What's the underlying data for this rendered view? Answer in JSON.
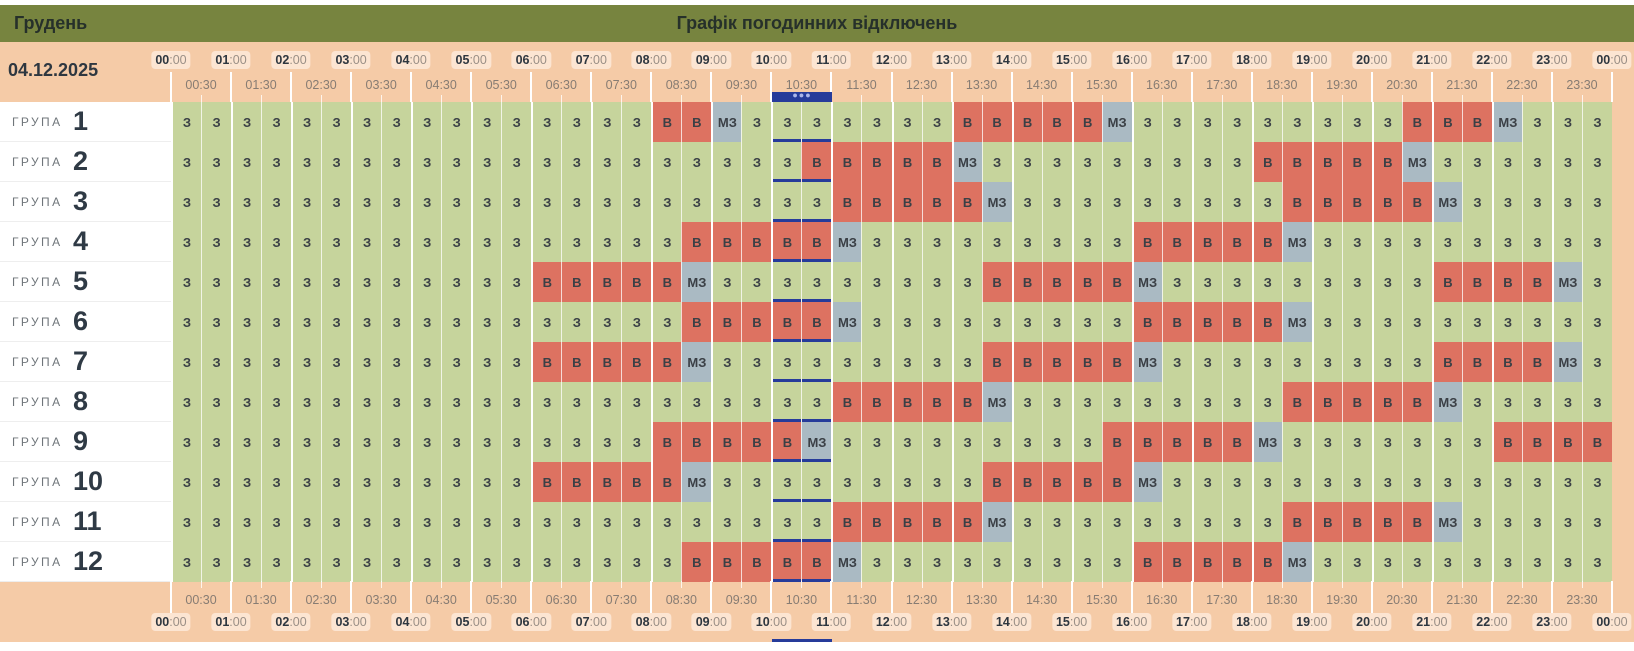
{
  "header": {
    "month": "Грудень",
    "title": "Графік погодинних відключень"
  },
  "date": "04.12.2025",
  "time_axis": {
    "hours": [
      "00",
      "01",
      "02",
      "03",
      "04",
      "05",
      "06",
      "07",
      "08",
      "09",
      "10",
      "11",
      "12",
      "13",
      "14",
      "15",
      "16",
      "17",
      "18",
      "19",
      "20",
      "21",
      "22",
      "23",
      "00"
    ],
    "hour_suffix": ":00",
    "half_hours": [
      "00:30",
      "01:30",
      "02:30",
      "03:30",
      "04:30",
      "05:30",
      "06:30",
      "07:30",
      "08:30",
      "09:30",
      "10:30",
      "11:30",
      "12:30",
      "13:30",
      "14:30",
      "15:30",
      "16:30",
      "17:30",
      "18:30",
      "19:30",
      "20:30",
      "21:30",
      "22:30",
      "23:30"
    ],
    "current_slot_hour": 10
  },
  "state_labels": {
    "z": "З",
    "v": "В",
    "m": "МЗ"
  },
  "colors": {
    "on": "#c6d49c",
    "off": "#dd7261",
    "maybe": "#aabac3",
    "header": "#77843f",
    "current": "#263b9a"
  },
  "group_word": "ГРУПА",
  "groups": [
    {
      "number": "1",
      "cells": "zzzzzzzzzzzzzzzzvvmzzzzzzzvvvvvmzzzzzzzzzvvvmzzz"
    },
    {
      "number": "2",
      "cells": "zzzzzzzzzzzzzzzzzzzzzvvvvvmzzzzzzzzzvvvvvmzzzzzz"
    },
    {
      "number": "3",
      "cells": "zzzzzzzzzzzzzzzzzzzzzzvvvvvmzzzzzzzzzvvvvvmzzzzz"
    },
    {
      "number": "4",
      "cells": "zzzzzzzzzzzzzzzzzvvvvvmzzzzzzzzzvvvvvmzzzzzzzzzz"
    },
    {
      "number": "5",
      "cells": "zzzzzzzzzzzzvvvvvmzzzzzzzzzvvvvvmzzzzzzzzzvvvvmz"
    },
    {
      "number": "6",
      "cells": "zzzzzzzzzzzzzzzzzvvvvvmzzzzzzzzzvvvvvmzzzzzzzzzz"
    },
    {
      "number": "7",
      "cells": "zzzzzzzzzzzzvvvvvmzzzzzzzzzvvvvvmzzzzzzzzzvvvvmz"
    },
    {
      "number": "8",
      "cells": "zzzzzzzzzzzzzzzzzzzzzzvvvvvmzzzzzzzzzvvvvvmzzzzz"
    },
    {
      "number": "9",
      "cells": "zzzzzzzzzzzzzzzzvvvvvmzzzzzzzzzvvvvvmzzzzzzzvvvv"
    },
    {
      "number": "10",
      "cells": "zzzzzzzzzzzzvvvvvmzzzzzzzzzvvvvvmzzzzzzzzzzzzzzz"
    },
    {
      "number": "11",
      "cells": "zzzzzzzzzzzzzzzzzzzzzzvvvvvmzzzzzzzzzvvvvvmzzzzz"
    },
    {
      "number": "12",
      "cells": "zzzzzzzzzzzzzzzzzvvvvvmzzzzzzzzzvvvvvmzzzzzzzzzz"
    }
  ]
}
